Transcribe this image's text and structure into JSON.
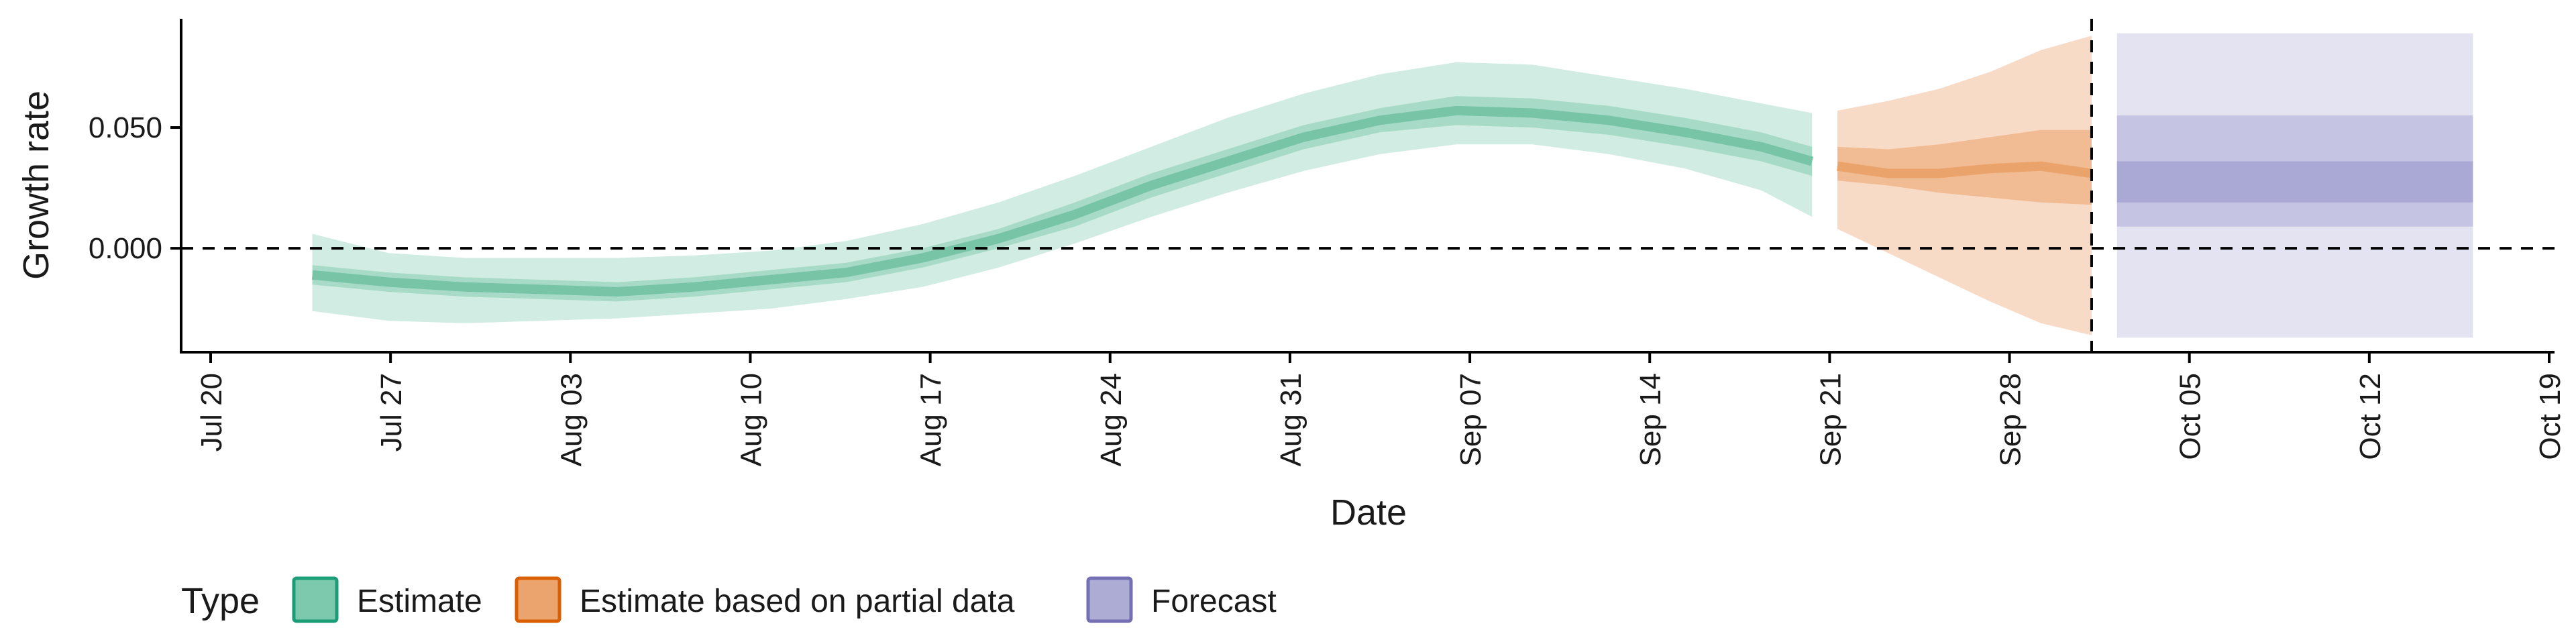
{
  "chart_data": {
    "type": "area",
    "xlabel": "Date",
    "ylabel": "Growth rate",
    "x_ticks": [
      "Jul 20",
      "Jul 27",
      "Aug 03",
      "Aug 10",
      "Aug 17",
      "Aug 24",
      "Aug 31",
      "Sep 07",
      "Sep 14",
      "Sep 21",
      "Sep 28",
      "Oct 05",
      "Oct 12",
      "Oct 19"
    ],
    "xlim": [
      "2020-07-19",
      "2020-10-19"
    ],
    "y_ticks": [
      "0.000",
      "0.050"
    ],
    "ylim": [
      -0.043,
      0.095
    ],
    "reference_lines": {
      "horizontal_y": 0.0,
      "vertical_x": "2020-10-01"
    },
    "grid": false,
    "legend": {
      "title": "Type",
      "placement": "bottom-left",
      "items": [
        {
          "label": "Estimate",
          "fill": "#7cc9ad",
          "stroke": "#1b9e77"
        },
        {
          "label": "Estimate based on partial data",
          "fill": "#eba46d",
          "stroke": "#d95f02"
        },
        {
          "label": "Forecast",
          "fill": "#adacd5",
          "stroke": "#7570b3"
        }
      ]
    },
    "series": [
      {
        "name": "Estimate",
        "color": "#1b9e77",
        "x": [
          "2020-07-23",
          "2020-07-26",
          "2020-07-29",
          "2020-08-01",
          "2020-08-04",
          "2020-08-07",
          "2020-08-10",
          "2020-08-13",
          "2020-08-16",
          "2020-08-19",
          "2020-08-22",
          "2020-08-25",
          "2020-08-28",
          "2020-08-31",
          "2020-09-03",
          "2020-09-06",
          "2020-09-09",
          "2020-09-12",
          "2020-09-15",
          "2020-09-18",
          "2020-09-20"
        ],
        "median": [
          -0.011,
          -0.014,
          -0.016,
          -0.017,
          -0.018,
          -0.016,
          -0.013,
          -0.01,
          -0.004,
          0.004,
          0.014,
          0.026,
          0.036,
          0.046,
          0.053,
          0.057,
          0.056,
          0.053,
          0.048,
          0.042,
          0.036
        ],
        "ci50_lower": [
          -0.015,
          -0.018,
          -0.02,
          -0.021,
          -0.022,
          -0.02,
          -0.017,
          -0.014,
          -0.008,
          0.0,
          0.009,
          0.021,
          0.031,
          0.041,
          0.048,
          0.051,
          0.05,
          0.047,
          0.042,
          0.036,
          0.03
        ],
        "ci50_upper": [
          -0.007,
          -0.01,
          -0.012,
          -0.013,
          -0.014,
          -0.012,
          -0.009,
          -0.006,
          0.0,
          0.008,
          0.019,
          0.031,
          0.041,
          0.051,
          0.058,
          0.063,
          0.062,
          0.059,
          0.054,
          0.048,
          0.042
        ],
        "ci90_lower": [
          -0.026,
          -0.03,
          -0.031,
          -0.03,
          -0.029,
          -0.027,
          -0.025,
          -0.021,
          -0.016,
          -0.008,
          0.002,
          0.013,
          0.023,
          0.032,
          0.039,
          0.043,
          0.043,
          0.039,
          0.033,
          0.024,
          0.013
        ],
        "ci90_upper": [
          0.006,
          -0.002,
          -0.004,
          -0.004,
          -0.004,
          -0.003,
          -0.001,
          0.003,
          0.01,
          0.019,
          0.03,
          0.042,
          0.054,
          0.064,
          0.072,
          0.077,
          0.076,
          0.071,
          0.066,
          0.06,
          0.056
        ]
      },
      {
        "name": "Estimate based on partial data",
        "color": "#d95f02",
        "x": [
          "2020-09-21",
          "2020-09-23",
          "2020-09-25",
          "2020-09-27",
          "2020-09-29",
          "2020-10-01"
        ],
        "median": [
          0.034,
          0.031,
          0.031,
          0.033,
          0.034,
          0.031
        ],
        "ci50_lower": [
          0.028,
          0.026,
          0.023,
          0.021,
          0.019,
          0.018
        ],
        "ci50_upper": [
          0.042,
          0.041,
          0.043,
          0.046,
          0.049,
          0.049
        ],
        "ci90_lower": [
          0.008,
          -0.002,
          -0.012,
          -0.022,
          -0.031,
          -0.036
        ],
        "ci90_upper": [
          0.057,
          0.061,
          0.066,
          0.073,
          0.082,
          0.088
        ]
      },
      {
        "name": "Forecast",
        "color": "#7570b3",
        "x": [
          "2020-10-02",
          "2020-10-16"
        ],
        "median": [
          0.027,
          0.027
        ],
        "ci50_lower": [
          0.019,
          0.019
        ],
        "ci50_upper": [
          0.036,
          0.036
        ],
        "ci90_lower": [
          0.009,
          0.009
        ],
        "ci90_upper": [
          0.055,
          0.055
        ],
        "ci_outer_lower": [
          -0.037,
          -0.037
        ],
        "ci_outer_upper": [
          0.089,
          0.089
        ]
      }
    ]
  }
}
